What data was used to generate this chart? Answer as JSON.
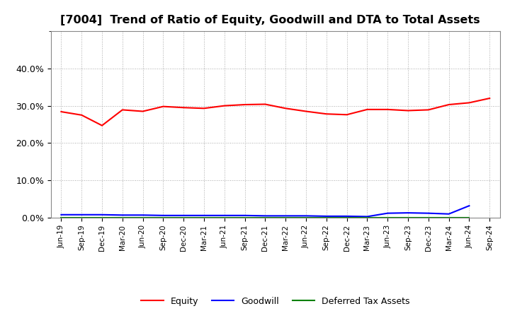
{
  "title": "[7004]  Trend of Ratio of Equity, Goodwill and DTA to Total Assets",
  "x_labels": [
    "Jun-19",
    "Sep-19",
    "Dec-19",
    "Mar-20",
    "Jun-20",
    "Sep-20",
    "Dec-20",
    "Mar-21",
    "Jun-21",
    "Sep-21",
    "Dec-21",
    "Mar-22",
    "Jun-22",
    "Sep-22",
    "Dec-22",
    "Mar-23",
    "Jun-23",
    "Sep-23",
    "Dec-23",
    "Mar-24",
    "Jun-24",
    "Sep-24"
  ],
  "equity": [
    0.284,
    0.275,
    0.247,
    0.289,
    0.285,
    0.298,
    0.295,
    0.293,
    0.3,
    0.303,
    0.304,
    0.293,
    0.285,
    0.278,
    0.276,
    0.29,
    0.29,
    0.287,
    0.289,
    0.303,
    0.308,
    0.32
  ],
  "goodwill": [
    0.008,
    0.008,
    0.008,
    0.007,
    0.007,
    0.006,
    0.006,
    0.006,
    0.006,
    0.006,
    0.005,
    0.005,
    0.005,
    0.004,
    0.004,
    0.003,
    0.012,
    0.013,
    0.012,
    0.01,
    0.032,
    null
  ],
  "dta": [
    0.0,
    0.0,
    0.0,
    0.0,
    0.0,
    0.0,
    0.0,
    0.0,
    0.0,
    0.0,
    0.0,
    0.0,
    0.0,
    0.0,
    0.0,
    0.0,
    0.0,
    0.0,
    0.0,
    0.0,
    0.0,
    null
  ],
  "equity_color": "#FF0000",
  "goodwill_color": "#0000FF",
  "dta_color": "#008000",
  "ylim": [
    0.0,
    0.5
  ],
  "yticks": [
    0.0,
    0.1,
    0.2,
    0.3,
    0.4
  ],
  "background_color": "#FFFFFF",
  "plot_bg_color": "#FFFFFF",
  "grid_color": "#AAAAAA",
  "title_fontsize": 11.5
}
